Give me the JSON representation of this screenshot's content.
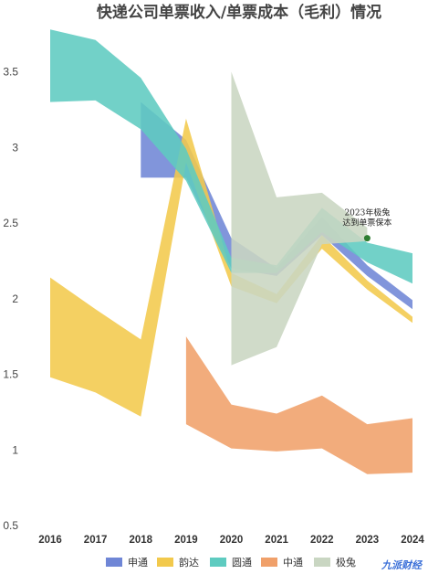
{
  "chart_data": {
    "type": "area",
    "title": "快递公司单票收入/单票成本（毛利）情况",
    "xlabel": "",
    "ylabel": "",
    "ylim": [
      0.5,
      3.85
    ],
    "yticks": [
      "0.5",
      "1",
      "1.5",
      "2",
      "2.5",
      "3",
      "3.5"
    ],
    "categories": [
      "2016",
      "2017",
      "2018",
      "2019",
      "2020",
      "2021",
      "2022",
      "2023",
      "2024"
    ],
    "legend_position": "bottom",
    "grid": false,
    "series": [
      {
        "name": "申通",
        "color": "#6f86d6",
        "upper": [
          null,
          null,
          3.3,
          3.05,
          2.4,
          2.2,
          2.54,
          2.22,
          1.99
        ],
        "lower": [
          null,
          null,
          2.8,
          2.8,
          2.2,
          2.15,
          2.42,
          2.15,
          1.93
        ]
      },
      {
        "name": "韵达",
        "color": "#f2c94c",
        "upper": [
          2.14,
          1.93,
          1.73,
          3.19,
          2.17,
          2.03,
          2.42,
          2.12,
          1.88
        ],
        "lower": [
          1.48,
          1.38,
          1.22,
          2.9,
          2.08,
          1.97,
          2.33,
          2.06,
          1.84
        ]
      },
      {
        "name": "圆通",
        "color": "#5ecbc0",
        "upper": [
          3.78,
          3.71,
          3.46,
          2.99,
          2.27,
          2.22,
          2.6,
          2.37,
          2.3
        ],
        "lower": [
          3.3,
          3.31,
          3.12,
          2.78,
          2.17,
          2.17,
          2.44,
          2.24,
          2.1
        ]
      },
      {
        "name": "中通",
        "color": "#f0a06a",
        "upper": [
          null,
          null,
          null,
          1.75,
          1.3,
          1.24,
          1.36,
          1.17,
          1.21
        ],
        "lower": [
          null,
          null,
          null,
          1.17,
          1.01,
          0.99,
          1.01,
          0.84,
          0.85
        ]
      },
      {
        "name": "极兔",
        "color": "#c9d6c2",
        "upper": [
          null,
          null,
          null,
          null,
          3.5,
          2.67,
          2.7,
          2.47,
          null
        ],
        "lower": [
          null,
          null,
          null,
          null,
          1.56,
          1.68,
          2.36,
          2.38,
          null
        ]
      }
    ],
    "annotations": [
      {
        "text_lines": [
          "2023年极兔",
          "达到单票保本"
        ],
        "x": "2023",
        "y": 2.4
      }
    ]
  },
  "watermark": "九派财经"
}
